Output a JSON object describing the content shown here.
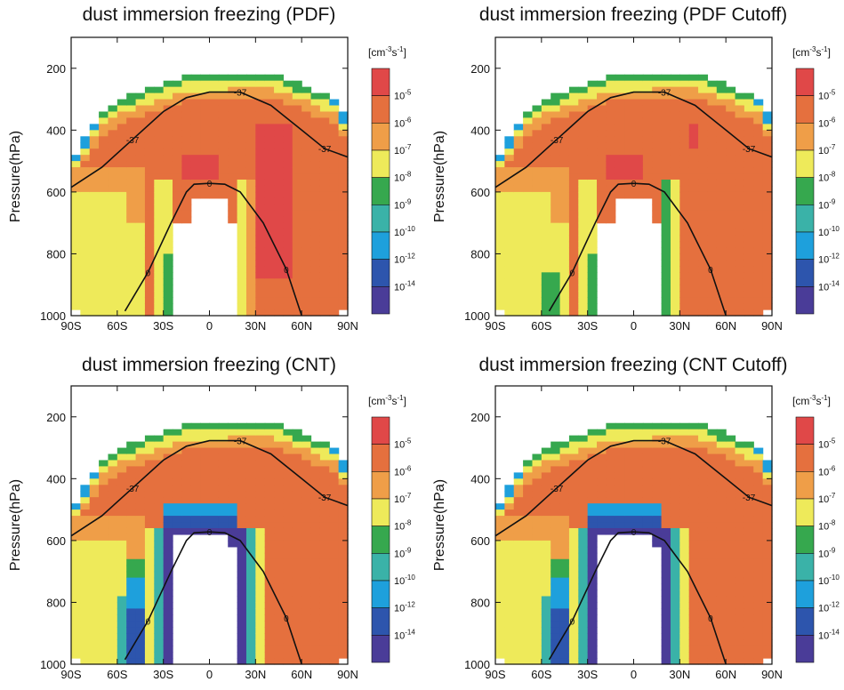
{
  "chart_data": [
    {
      "type": "heatmap",
      "title": "dust immersion freezing (PDF)",
      "x_ticks": [
        "90S",
        "60S",
        "30S",
        "0",
        "30N",
        "60N",
        "90N"
      ],
      "y_ticks": [
        "200",
        "400",
        "600",
        "800",
        "1000"
      ],
      "xlim": [
        -90,
        90
      ],
      "ylim": [
        1000,
        100
      ],
      "ylabel": "Pressure(hPa)",
      "colorbar_unit": "[cm-3s-1]",
      "colorbar_labels": [
        "10-5",
        "10-6",
        "10-7",
        "10-8",
        "10-9",
        "10-10",
        "10-12",
        "10-14"
      ],
      "contours": [
        {
          "label": "-37",
          "points": [
            [
              -90,
              585
            ],
            [
              -70,
              520
            ],
            [
              -50,
              430
            ],
            [
              -30,
              340
            ],
            [
              -15,
              295
            ],
            [
              0,
              277
            ],
            [
              20,
              277
            ],
            [
              40,
              320
            ],
            [
              60,
              400
            ],
            [
              75,
              460
            ],
            [
              90,
              487
            ]
          ]
        },
        {
          "label": "0",
          "points": [
            [
              -55,
              985
            ],
            [
              -40,
              860
            ],
            [
              -25,
              700
            ],
            [
              -15,
              600
            ],
            [
              -10,
              575
            ],
            [
              0,
              572
            ],
            [
              10,
              575
            ],
            [
              20,
              600
            ],
            [
              35,
              700
            ],
            [
              50,
              850
            ],
            [
              60,
              1000
            ]
          ]
        }
      ]
    },
    {
      "type": "heatmap",
      "title": "dust immersion freezing (PDF Cutoff)",
      "x_ticks": [
        "90S",
        "60S",
        "30S",
        "0",
        "30N",
        "60N",
        "90N"
      ],
      "y_ticks": [
        "200",
        "400",
        "600",
        "800",
        "1000"
      ],
      "xlim": [
        -90,
        90
      ],
      "ylim": [
        1000,
        100
      ],
      "ylabel": "Pressure(hPa)",
      "colorbar_unit": "[cm-3s-1]",
      "colorbar_labels": [
        "10-5",
        "10-6",
        "10-7",
        "10-8",
        "10-9",
        "10-10",
        "10-12",
        "10-14"
      ],
      "contours": [
        {
          "label": "-37",
          "points": [
            [
              -90,
              585
            ],
            [
              -70,
              520
            ],
            [
              -50,
              430
            ],
            [
              -30,
              340
            ],
            [
              -15,
              295
            ],
            [
              0,
              277
            ],
            [
              20,
              277
            ],
            [
              40,
              320
            ],
            [
              60,
              400
            ],
            [
              75,
              460
            ],
            [
              90,
              487
            ]
          ]
        },
        {
          "label": "0",
          "points": [
            [
              -55,
              985
            ],
            [
              -40,
              860
            ],
            [
              -25,
              700
            ],
            [
              -15,
              600
            ],
            [
              -10,
              575
            ],
            [
              0,
              572
            ],
            [
              10,
              575
            ],
            [
              20,
              600
            ],
            [
              35,
              700
            ],
            [
              50,
              850
            ],
            [
              60,
              1000
            ]
          ]
        }
      ]
    },
    {
      "type": "heatmap",
      "title": "dust immersion freezing (CNT)",
      "x_ticks": [
        "90S",
        "60S",
        "30S",
        "0",
        "30N",
        "60N",
        "90N"
      ],
      "y_ticks": [
        "200",
        "400",
        "600",
        "800",
        "1000"
      ],
      "xlim": [
        -90,
        90
      ],
      "ylim": [
        1000,
        100
      ],
      "ylabel": "Pressure(hPa)",
      "colorbar_unit": "[cm-3s-1]",
      "colorbar_labels": [
        "10-5",
        "10-6",
        "10-7",
        "10-8",
        "10-9",
        "10-10",
        "10-12",
        "10-14"
      ],
      "contours": [
        {
          "label": "-37",
          "points": [
            [
              -90,
              585
            ],
            [
              -70,
              520
            ],
            [
              -50,
              430
            ],
            [
              -30,
              340
            ],
            [
              -15,
              295
            ],
            [
              0,
              277
            ],
            [
              20,
              277
            ],
            [
              40,
              320
            ],
            [
              60,
              400
            ],
            [
              75,
              460
            ],
            [
              90,
              487
            ]
          ]
        },
        {
          "label": "0",
          "points": [
            [
              -55,
              985
            ],
            [
              -40,
              860
            ],
            [
              -25,
              700
            ],
            [
              -15,
              600
            ],
            [
              -10,
              575
            ],
            [
              0,
              572
            ],
            [
              10,
              575
            ],
            [
              20,
              600
            ],
            [
              35,
              700
            ],
            [
              50,
              850
            ],
            [
              60,
              1000
            ]
          ]
        }
      ]
    },
    {
      "type": "heatmap",
      "title": "dust immersion freezing (CNT Cutoff)",
      "x_ticks": [
        "90S",
        "60S",
        "30S",
        "0",
        "30N",
        "60N",
        "90N"
      ],
      "y_ticks": [
        "200",
        "400",
        "600",
        "800",
        "1000"
      ],
      "xlim": [
        -90,
        90
      ],
      "ylim": [
        1000,
        100
      ],
      "ylabel": "Pressure(hPa)",
      "colorbar_unit": "[cm-3s-1]",
      "colorbar_labels": [
        "10-5",
        "10-6",
        "10-7",
        "10-8",
        "10-9",
        "10-10",
        "10-12",
        "10-14"
      ],
      "contours": [
        {
          "label": "-37",
          "points": [
            [
              -90,
              585
            ],
            [
              -70,
              520
            ],
            [
              -50,
              430
            ],
            [
              -30,
              340
            ],
            [
              -15,
              295
            ],
            [
              0,
              277
            ],
            [
              20,
              277
            ],
            [
              40,
              320
            ],
            [
              60,
              400
            ],
            [
              75,
              460
            ],
            [
              90,
              487
            ]
          ]
        },
        {
          "label": "0",
          "points": [
            [
              -55,
              985
            ],
            [
              -40,
              860
            ],
            [
              -25,
              700
            ],
            [
              -15,
              600
            ],
            [
              -10,
              575
            ],
            [
              0,
              572
            ],
            [
              10,
              575
            ],
            [
              20,
              600
            ],
            [
              35,
              700
            ],
            [
              50,
              850
            ],
            [
              60,
              1000
            ]
          ]
        }
      ]
    }
  ],
  "colors": [
    "#e04848",
    "#e5703e",
    "#ef9e48",
    "#eeea5a",
    "#36a84e",
    "#3ab2a8",
    "#1ea0dc",
    "#2d55ad",
    "#4a3c98"
  ]
}
